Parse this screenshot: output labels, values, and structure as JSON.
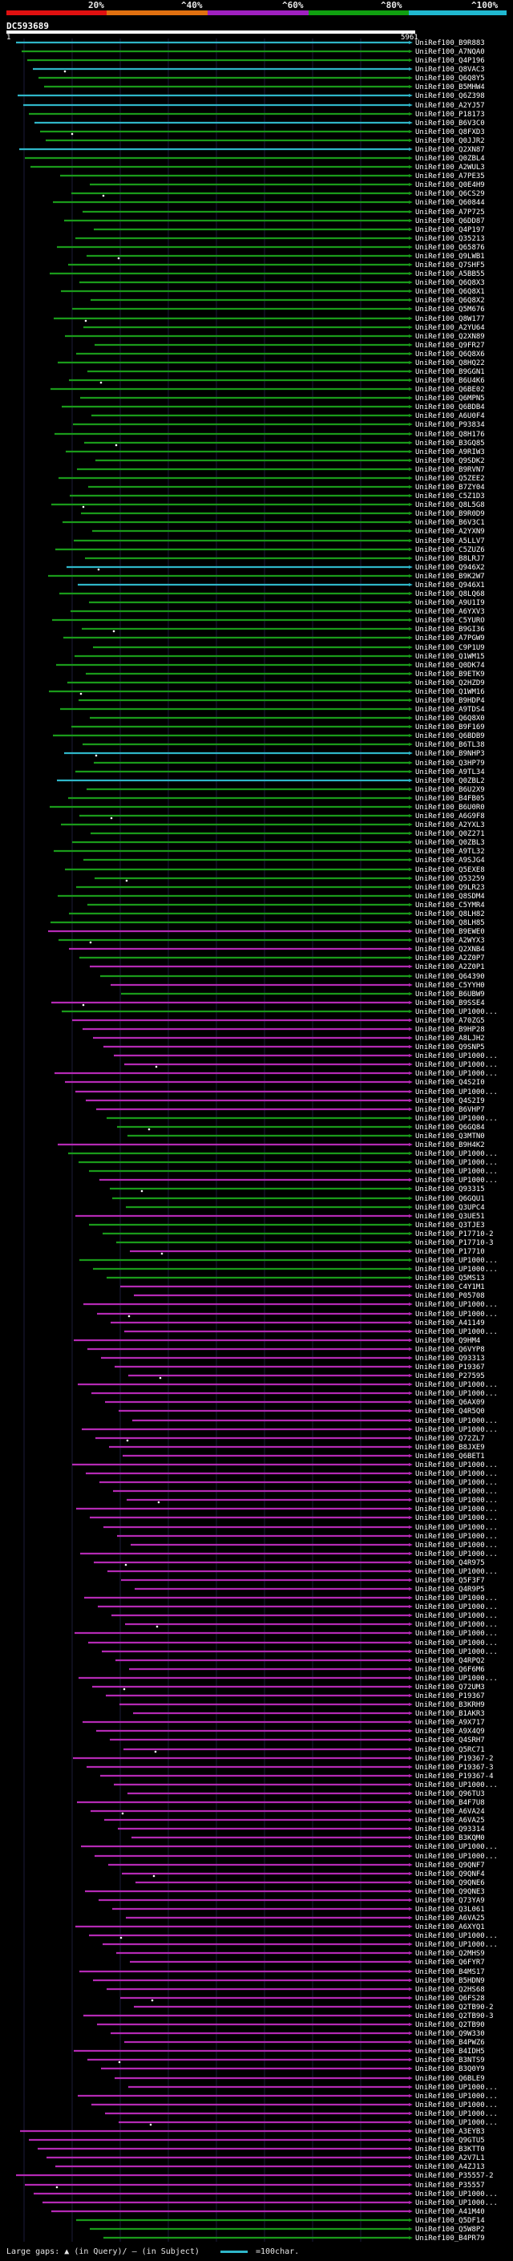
{
  "scale": {
    "ticks": [
      {
        "label": "20%",
        "color": "#e01010"
      },
      {
        "label": "^40%",
        "color": "#e07010"
      },
      {
        "label": "^60%",
        "color": "#a020c0"
      },
      {
        "label": "^80%",
        "color": "#10a010"
      },
      {
        "label": "^100%",
        "color": "#20b8d0"
      }
    ]
  },
  "query": {
    "name": "DC593689",
    "start": "1",
    "end": "5961"
  },
  "hit_colors": {
    "cyan": "#2fb6c8",
    "green": "#1a9a1a",
    "magenta": "#b42ab4"
  },
  "hits": [
    "UniRef100_B9R883",
    "UniRef100_A7NQA0",
    "UniRef100_Q4P196",
    "UniRef100_Q8VAC3",
    "UniRef100_Q6Q8Y5",
    "UniRef100_B5MHW4",
    "UniRef100_Q6Z398",
    "UniRef100_A2YJ57",
    "UniRef100_P18173",
    "UniRef100_B6V3C0",
    "UniRef100_Q8FXD3",
    "UniRef100_Q0JJR2",
    "UniRef100_Q2XN87",
    "UniRef100_Q0ZBL4",
    "UniRef100_A2WUL3",
    "UniRef100_A7PE35",
    "UniRef100_Q0E4H9",
    "UniRef100_Q6CS29",
    "UniRef100_Q60844",
    "UniRef100_A7P725",
    "UniRef100_Q6DD87",
    "UniRef100_Q4P197",
    "UniRef100_Q35213",
    "UniRef100_Q65876",
    "UniRef100_Q9LWB1",
    "UniRef100_Q7SHF5",
    "UniRef100_A5BB55",
    "UniRef100_Q6Q8X3",
    "UniRef100_Q6Q8X1",
    "UniRef100_Q6Q8X2",
    "UniRef100_Q5M676",
    "UniRef100_Q8W177",
    "UniRef100_A2YU64",
    "UniRef100_Q2XN89",
    "UniRef100_Q9FR27",
    "UniRef100_Q6Q8X6",
    "UniRef100_Q8HQ22",
    "UniRef100_B9GGN1",
    "UniRef100_B6U4K6",
    "UniRef100_Q6BE02",
    "UniRef100_Q6MPN5",
    "UniRef100_Q6BDB4",
    "UniRef100_A6U0F4",
    "UniRef100_P93834",
    "UniRef100_Q8H176",
    "UniRef100_B3GQ85",
    "UniRef100_A9RIW3",
    "UniRef100_Q9SDK2",
    "UniRef100_B9RVN7",
    "UniRef100_Q5ZEE2",
    "UniRef100_B7ZY04",
    "UniRef100_C5Z1D3",
    "UniRef100_Q8L5G8",
    "UniRef100_B9R0D9",
    "UniRef100_B6V3C1",
    "UniRef100_A2YXN9",
    "UniRef100_A5LLV7",
    "UniRef100_C5ZUZ6",
    "UniRef100_B8LRJ7",
    "UniRef100_Q946X2",
    "UniRef100_B9K2W7",
    "UniRef100_Q946X1",
    "UniRef100_Q8LQ68",
    "UniRef100_A9U1I9",
    "UniRef100_A6YXV3",
    "UniRef100_C5YURO",
    "UniRef100_B9GI36",
    "UniRef100_A7PGW9",
    "UniRef100_C9P1U9",
    "UniRef100_Q1WM15",
    "UniRef100_Q0DK74",
    "UniRef100_B9ETK9",
    "UniRef100_Q2HZD9",
    "UniRef100_Q1WM16",
    "UniRef100_B9HDP4",
    "UniRef100_A9TDS4",
    "UniRef100_Q6Q8X0",
    "UniRef100_B9F169",
    "UniRef100_Q6BDB9",
    "UniRef100_B6TL38",
    "UniRef100_B9NHP3",
    "UniRef100_Q3HP79",
    "UniRef100_A9TL34",
    "UniRef100_Q0ZBL2",
    "UniRef100_B6U2X9",
    "UniRef100_B4FB05",
    "UniRef100_B6U0R0",
    "UniRef100_A6G9F8",
    "UniRef100_A2YXL3",
    "UniRef100_Q0Z271",
    "UniRef100_Q0ZBL3",
    "UniRef100_A9TL32",
    "UniRef100_A9SJG4",
    "UniRef100_Q5EXE8",
    "UniRef100_Q53259",
    "UniRef100_Q9LR23",
    "UniRef100_Q8SDM4",
    "UniRef100_C5YMR4",
    "UniRef100_Q8LH82",
    "UniRef100_Q8LH85",
    "UniRef100_B9EWE0",
    "UniRef100_A2WYX3",
    "UniRef100_Q2XNB4",
    "UniRef100_A2Z0P7",
    "UniRef100_A2Z0P1",
    "UniRef100_Q64390",
    "UniRef100_C5YYH0",
    "UniRef100_B6UBW9",
    "UniRef100_B9SSE4",
    "UniRef100_UP1000...",
    "UniRef100_A70ZG5",
    "UniRef100_B9HP28",
    "UniRef100_A8LJH2",
    "UniRef100_Q9SNP5",
    "UniRef100_UP1000...",
    "UniRef100_UP1000...",
    "UniRef100_UP1000...",
    "UniRef100_Q4S2I0",
    "UniRef100_UP1000...",
    "UniRef100_Q4S2I9",
    "UniRef100_B6VHP7",
    "UniRef100_UP1000...",
    "UniRef100_Q6GQ84",
    "UniRef100_Q3MTN0",
    "UniRef100_B9H4K2",
    "UniRef100_UP1000...",
    "UniRef100_UP1000...",
    "UniRef100_UP1000...",
    "UniRef100_UP1000...",
    "UniRef100_Q93315",
    "UniRef100_Q6GQU1",
    "UniRef100_Q3UPC4",
    "UniRef100_Q3UE51",
    "UniRef100_Q3TJE3",
    "UniRef100_P17710-2",
    "UniRef100_P17710-3",
    "UniRef100_P17710",
    "UniRef100_UP1000...",
    "UniRef100_UP1000...",
    "UniRef100_Q5MS13",
    "UniRef100_C4Y1M1",
    "UniRef100_P05708",
    "UniRef100_UP1000...",
    "UniRef100_UP1000...",
    "UniRef100_A41149",
    "UniRef100_UP1000...",
    "UniRef100_Q9HM4",
    "UniRef100_Q6VYP8",
    "UniRef100_Q93313",
    "UniRef100_P19367",
    "UniRef100_P27595",
    "UniRef100_UP1000...",
    "UniRef100_UP1000...",
    "UniRef100_Q6AX09",
    "UniRef100_Q4R5Q0",
    "UniRef100_UP1000...",
    "UniRef100_UP1000...",
    "UniRef100_Q72ZL7",
    "UniRef100_B8JXE9",
    "UniRef100_Q6BET1",
    "UniRef100_UP1000...",
    "UniRef100_UP1000...",
    "UniRef100_UP1000...",
    "UniRef100_UP1000...",
    "UniRef100_UP1000...",
    "UniRef100_UP1000...",
    "UniRef100_UP1000...",
    "UniRef100_UP1000...",
    "UniRef100_UP1000...",
    "UniRef100_UP1000...",
    "UniRef100_UP1000...",
    "UniRef100_Q4R975",
    "UniRef100_UP1000...",
    "UniRef100_Q5F3F7",
    "UniRef100_Q4R9P5",
    "UniRef100_UP1000...",
    "UniRef100_UP1000...",
    "UniRef100_UP1000...",
    "UniRef100_UP1000...",
    "UniRef100_UP1000...",
    "UniRef100_UP1000...",
    "UniRef100_UP1000...",
    "UniRef100_Q4RPQ2",
    "UniRef100_Q6F6M6",
    "UniRef100_UP1000...",
    "UniRef100_Q72UM3",
    "UniRef100_P19367",
    "UniRef100_B3KRH9",
    "UniRef100_B1AKR3",
    "UniRef100_A9X717",
    "UniRef100_A9X4Q9",
    "UniRef100_Q4SRH7",
    "UniRef100_Q5RC71",
    "UniRef100_P19367-2",
    "UniRef100_P19367-3",
    "UniRef100_P19367-4",
    "UniRef100_UP1000...",
    "UniRef100_Q96TU3",
    "UniRef100_B4F7U8",
    "UniRef100_A6VA24",
    "UniRef100_A6VA25",
    "UniRef100_Q93314",
    "UniRef100_B3KQM0",
    "UniRef100_UP1000...",
    "UniRef100_UP1000...",
    "UniRef100_Q9QNF7",
    "UniRef100_Q9QNF4",
    "UniRef100_Q9QNE6",
    "UniRef100_Q9QNE3",
    "UniRef100_Q73YA9",
    "UniRef100_Q3L061",
    "UniRef100_A6VA25",
    "UniRef100_A6XYQ1",
    "UniRef100_UP1000...",
    "UniRef100_UP1000...",
    "UniRef100_Q2MHS9",
    "UniRef100_Q6FYR7",
    "UniRef100_B4MS17",
    "UniRef100_B5HDN9",
    "UniRef100_Q2HS68",
    "UniRef100_Q6FS28",
    "UniRef100_Q2TB90-2",
    "UniRef100_Q2TB90-3",
    "UniRef100_Q2TB90",
    "UniRef100_Q9W330",
    "UniRef100_B4PWZ6",
    "UniRef100_B4IDH5",
    "UniRef100_B3NTS9",
    "UniRef100_B3Q0Y9",
    "UniRef100_Q6BLE9",
    "UniRef100_UP1000...",
    "UniRef100_UP1000...",
    "UniRef100_UP1000...",
    "UniRef100_UP1000...",
    "UniRef100_UP1000...",
    "UniRef100_A3EYB3",
    "UniRef100_Q9GTU5",
    "UniRef100_B3KTT0",
    "UniRef100_A2V7L1",
    "UniRef100_A4ZJ13",
    "UniRef100_P35557-2",
    "UniRef100_P35557",
    "UniRef100_UP1000...",
    "UniRef100_UP1000...",
    "UniRef100_A41M40",
    "UniRef100_Q5DF14",
    "UniRef100_Q5W8P2",
    "UniRef100_B4PR79"
  ],
  "legend": {
    "large_gaps_label": "Large gaps:",
    "in_query_label": "(in Query)/",
    "in_subject_label": "(in Subject)",
    "scale_label": "=100char."
  }
}
